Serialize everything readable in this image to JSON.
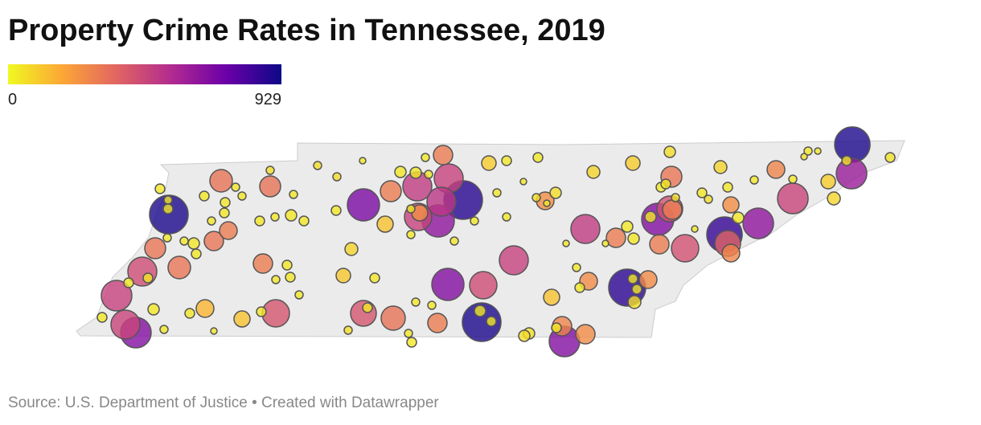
{
  "title": "Property Crime Rates in Tennessee, 2019",
  "legend": {
    "min": 0,
    "max": 929,
    "colors": [
      "#f0f921",
      "#fca636",
      "#e16462",
      "#b12a90",
      "#6a00a8",
      "#0d0887"
    ]
  },
  "bubbles": {
    "values": [
      900,
      880,
      900,
      870,
      850,
      900,
      700,
      650,
      680,
      680,
      650,
      680,
      680,
      620,
      500,
      480,
      520,
      480,
      500,
      480,
      450,
      470,
      480,
      470,
      450,
      420,
      420,
      430,
      430,
      380,
      330,
      330,
      300,
      300,
      320,
      320,
      320,
      300,
      300,
      330,
      300,
      300,
      300,
      320,
      300,
      280,
      280,
      260,
      260,
      260,
      280,
      250,
      250,
      250,
      150,
      120,
      80,
      110,
      120,
      120,
      80,
      100,
      100,
      80,
      100,
      80,
      50,
      60,
      60,
      40,
      40,
      40,
      40,
      40,
      60,
      60,
      60,
      40,
      40,
      40,
      40,
      40,
      40,
      40,
      40,
      40,
      40,
      40,
      40,
      40,
      40,
      40,
      40,
      40,
      40,
      60,
      40,
      40,
      40,
      40,
      40,
      40,
      60,
      60,
      40,
      40,
      40,
      40,
      40,
      40,
      40,
      40,
      40,
      40,
      40,
      40,
      40,
      60,
      40,
      40,
      40,
      40,
      40,
      40,
      40,
      40,
      40,
      40,
      40,
      40,
      60,
      40,
      40,
      40,
      40,
      40,
      40,
      40,
      60,
      40,
      40,
      40,
      40,
      40,
      40,
      60,
      60,
      60,
      40,
      40,
      40,
      40,
      40,
      40,
      40
    ]
  },
  "source": "Source: U.S. Department of Justice • Created with Datawrapper"
}
